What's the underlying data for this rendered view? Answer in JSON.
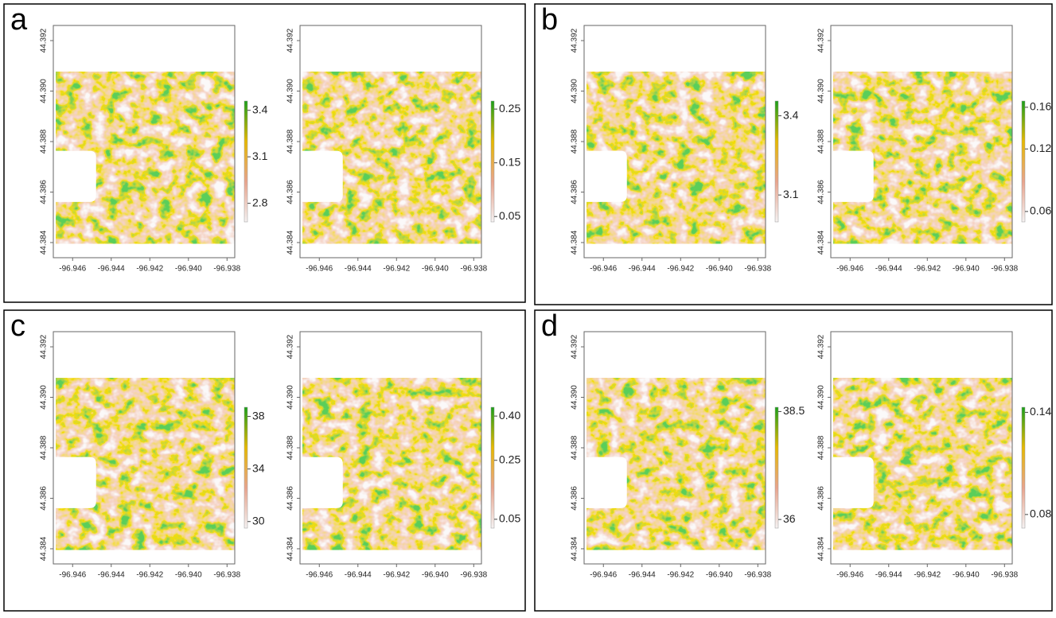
{
  "panel_labels": [
    "a",
    "b",
    "c",
    "d"
  ],
  "colors": [
    "#f5f2f2",
    "#e9a48d",
    "#e6b800",
    "#1a9e1a"
  ],
  "chart_data": [
    {
      "type": "raster",
      "xlim": [
        -96.947,
        -96.9376
      ],
      "ylim": [
        44.3834,
        44.3926
      ],
      "xticks": [
        -96.946,
        -96.944,
        -96.942,
        {
          "value": -96.94,
          "label": "-96.940"
        },
        -96.938
      ],
      "yticks": [
        44.384,
        44.386,
        44.388,
        {
          "value": 44.39,
          "label": "44.390"
        },
        44.392
      ],
      "colorbar": {
        "lim": [
          2.68,
          3.46
        ],
        "ticks": [
          2.8,
          3.1,
          3.4
        ]
      }
    },
    {
      "type": "raster",
      "xlim": [
        -96.947,
        -96.9376
      ],
      "ylim": [
        44.3834,
        44.3926
      ],
      "xticks": [
        -96.946,
        -96.944,
        -96.942,
        {
          "value": -96.94,
          "label": "-96.940"
        },
        -96.938
      ],
      "yticks": [
        44.384,
        44.386,
        44.388,
        {
          "value": 44.39,
          "label": "44.390"
        },
        44.392
      ],
      "colorbar": {
        "lim": [
          0.04,
          0.265
        ],
        "ticks": [
          0.05,
          0.15,
          0.25
        ]
      }
    },
    {
      "type": "raster",
      "xlim": [
        -96.947,
        -96.9376
      ],
      "ylim": [
        44.3834,
        44.3926
      ],
      "xticks": [
        -96.946,
        -96.944,
        -96.942,
        {
          "value": -96.94,
          "label": "-96.940"
        },
        -96.938
      ],
      "yticks": [
        44.384,
        44.386,
        44.388,
        {
          "value": 44.39,
          "label": "44.390"
        },
        44.392
      ],
      "colorbar": {
        "lim": [
          2.998,
          3.456
        ],
        "ticks": [
          3.1,
          3.4
        ]
      }
    },
    {
      "type": "raster",
      "xlim": [
        -96.947,
        -96.9376
      ],
      "ylim": [
        44.3834,
        44.3926
      ],
      "xticks": [
        -96.946,
        -96.944,
        -96.942,
        {
          "value": -96.94,
          "label": "-96.940"
        },
        -96.938
      ],
      "yticks": [
        44.384,
        44.386,
        44.388,
        {
          "value": 44.39,
          "label": "44.390"
        },
        44.392
      ],
      "colorbar": {
        "lim": [
          0.05,
          0.166
        ],
        "ticks": [
          0.06,
          0.12,
          0.16
        ]
      }
    },
    {
      "type": "raster",
      "xlim": [
        -96.947,
        -96.9376
      ],
      "ylim": [
        44.3834,
        44.3926
      ],
      "xticks": [
        -96.946,
        -96.944,
        -96.942,
        {
          "value": -96.94,
          "label": "-96.940"
        },
        -96.938
      ],
      "yticks": [
        44.384,
        44.386,
        44.388,
        {
          "value": 44.39,
          "label": "44.390"
        },
        44.392
      ],
      "colorbar": {
        "lim": [
          29.5,
          38.7
        ],
        "ticks": [
          30,
          34,
          38
        ]
      }
    },
    {
      "type": "raster",
      "xlim": [
        -96.947,
        -96.9376
      ],
      "ylim": [
        44.3834,
        44.3926
      ],
      "xticks": [
        -96.946,
        -96.944,
        -96.942,
        {
          "value": -96.94,
          "label": "-96.940"
        },
        -96.938
      ],
      "yticks": [
        44.384,
        44.386,
        44.388,
        {
          "value": 44.39,
          "label": "44.390"
        },
        44.392
      ],
      "colorbar": {
        "lim": [
          0.02,
          0.43
        ],
        "ticks": [
          {
            "value": 0.05,
            "label": "0.05"
          },
          0.25,
          {
            "value": 0.4,
            "label": "0.40"
          }
        ]
      }
    },
    {
      "type": "raster",
      "xlim": [
        -96.947,
        -96.9376
      ],
      "ylim": [
        44.3834,
        44.3926
      ],
      "xticks": [
        -96.946,
        -96.944,
        -96.942,
        {
          "value": -96.94,
          "label": "-96.940"
        },
        -96.938
      ],
      "yticks": [
        44.384,
        44.386,
        44.388,
        {
          "value": 44.39,
          "label": "44.390"
        },
        44.392
      ],
      "colorbar": {
        "lim": [
          35.8,
          38.6
        ],
        "ticks": [
          36,
          38.5
        ]
      }
    },
    {
      "type": "raster",
      "xlim": [
        -96.947,
        -96.9376
      ],
      "ylim": [
        44.3834,
        44.3926
      ],
      "xticks": [
        -96.946,
        -96.944,
        -96.942,
        {
          "value": -96.94,
          "label": "-96.940"
        },
        -96.938
      ],
      "yticks": [
        44.384,
        44.386,
        44.388,
        {
          "value": 44.39,
          "label": "44.390"
        },
        44.392
      ],
      "colorbar": {
        "lim": [
          0.072,
          0.143
        ],
        "ticks": [
          0.08,
          0.14
        ]
      }
    }
  ]
}
